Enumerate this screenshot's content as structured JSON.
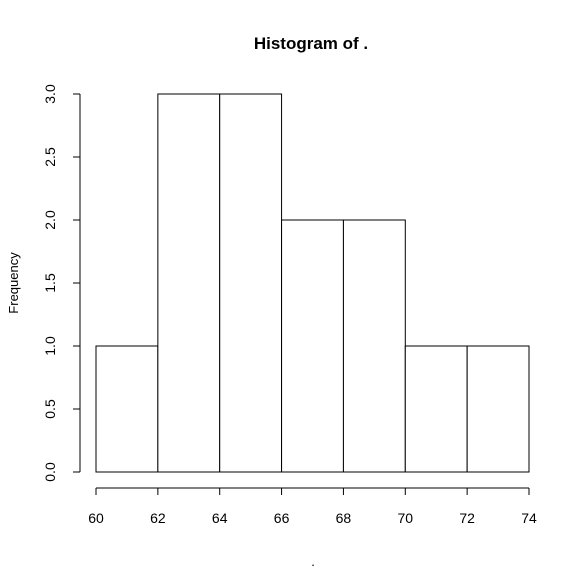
{
  "chart_data": {
    "type": "bar",
    "title": "Histogram of .",
    "xlabel": ".",
    "ylabel": "Frequency",
    "bins": [
      {
        "x0": 60,
        "x1": 62,
        "count": 1
      },
      {
        "x0": 62,
        "x1": 64,
        "count": 3
      },
      {
        "x0": 64,
        "x1": 66,
        "count": 3
      },
      {
        "x0": 66,
        "x1": 68,
        "count": 2
      },
      {
        "x0": 68,
        "x1": 70,
        "count": 2
      },
      {
        "x0": 70,
        "x1": 72,
        "count": 1
      },
      {
        "x0": 72,
        "x1": 74,
        "count": 1
      }
    ],
    "xlim": [
      60,
      74
    ],
    "ylim": [
      0,
      3
    ],
    "xticks": [
      "60",
      "62",
      "64",
      "66",
      "68",
      "70",
      "72",
      "74"
    ],
    "yticks": [
      "0.0",
      "0.5",
      "1.0",
      "1.5",
      "2.0",
      "2.5",
      "3.0"
    ],
    "grid": false,
    "legend": "none"
  }
}
